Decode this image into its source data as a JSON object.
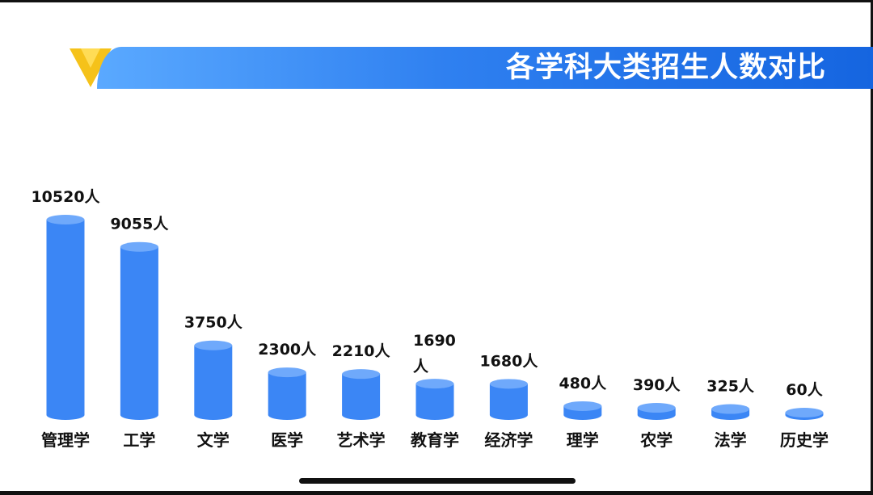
{
  "header": {
    "title": "各学科大类招生人数对比"
  },
  "colors": {
    "bar_side": "#3b86f5",
    "bar_top": "#6fa9fb",
    "banner": "#2f80f0",
    "logo": "#f5c21a"
  },
  "chart_data": {
    "type": "bar",
    "title": "各学科大类招生人数对比",
    "xlabel": "",
    "ylabel": "",
    "grid": false,
    "categories": [
      "管理学",
      "工学",
      "文学",
      "医学",
      "艺术学",
      "教育学",
      "经济学",
      "理学",
      "农学",
      "法学",
      "历史学"
    ],
    "values": [
      10520,
      9055,
      3750,
      2300,
      2210,
      1690,
      1680,
      480,
      390,
      325,
      60
    ],
    "data_labels": [
      "10520人",
      "9055人",
      "3750人",
      "2300人",
      "2210人",
      "1690人",
      "1680人",
      "480人",
      "390人",
      "325人",
      "60人"
    ],
    "unit": "人"
  }
}
